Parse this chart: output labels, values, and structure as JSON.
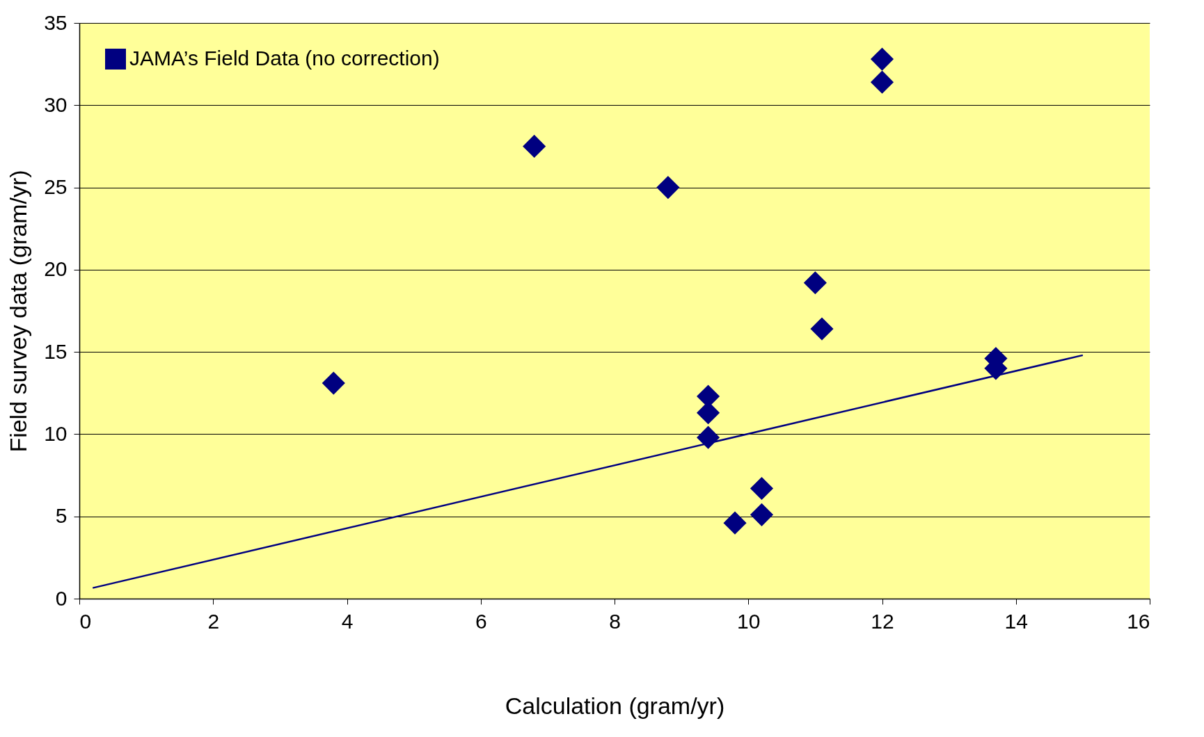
{
  "chart_data": {
    "type": "scatter",
    "xlabel": "Calculation (gram/yr)",
    "ylabel": "Field  survey data (gram/yr)",
    "xlim": [
      0,
      16
    ],
    "xticks": [
      0,
      2,
      4,
      6,
      8,
      10,
      12,
      14,
      16
    ],
    "ylim": [
      0,
      35
    ],
    "yticks": [
      0,
      5,
      10,
      15,
      20,
      25,
      30,
      35
    ],
    "grid": "y",
    "legend": "top left",
    "marker": "diamond",
    "series": [
      {
        "name": "JAMA’s Field Data (no correction)",
        "color": "#000080",
        "x": [
          3.8,
          6.8,
          8.8,
          9.4,
          9.4,
          9.4,
          9.8,
          10.2,
          10.2,
          11.0,
          11.1,
          12.0,
          12.0,
          13.7,
          13.7
        ],
        "values": [
          13.1,
          27.5,
          25.0,
          12.3,
          11.3,
          9.8,
          4.6,
          6.7,
          5.1,
          19.2,
          16.4,
          32.8,
          31.4,
          14.6,
          14.0
        ]
      },
      {
        "color": "#000080",
        "type": "line",
        "line_style": "solid",
        "marker": "none",
        "x": [
          0.2,
          15.0
        ],
        "values": [
          0.65,
          14.8
        ]
      }
    ]
  }
}
